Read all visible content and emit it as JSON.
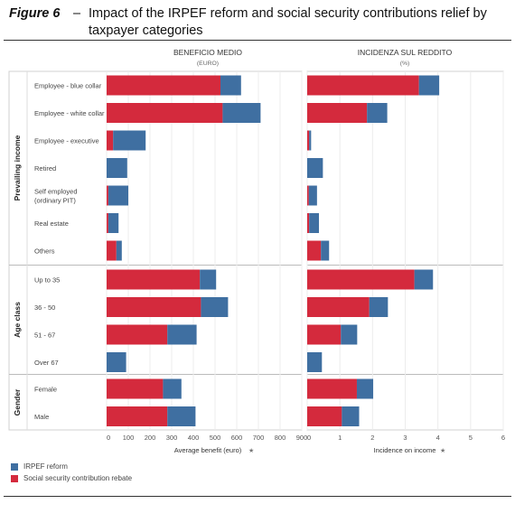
{
  "figure": {
    "label": "Figure 6",
    "dash": "–",
    "title_line1": "Impact of the IRPEF reform and social security contributions relief by",
    "title_line2": "taxpayer categories"
  },
  "colors": {
    "irpef": "#3f6fa1",
    "social": "#d42a3d"
  },
  "legend": {
    "irpef_label": "IRPEF reform",
    "social_label": "Social security contribution rebate"
  },
  "chart_data": [
    {
      "type": "bar",
      "orientation": "horizontal",
      "stacked": true,
      "title": "BENEFICIO MEDIO",
      "subtitle": "(EURO)",
      "xlabel": "Average benefit (euro)",
      "xlim": [
        0,
        900
      ],
      "xticks": [
        0,
        100,
        200,
        300,
        400,
        500,
        600,
        700,
        800,
        900
      ],
      "grid": true,
      "groups": [
        {
          "name": "Prevailing income",
          "categories": [
            "Employee - blue collar",
            "Employee - white collar",
            "Employee - executive",
            "Retired",
            "Self employed (ordinary PIT)",
            "Real estate",
            "Others"
          ]
        },
        {
          "name": "Age class",
          "categories": [
            "Up to 35",
            "36 - 50",
            "51 - 67",
            "Over 67"
          ]
        },
        {
          "name": "Gender",
          "categories": [
            "Female",
            "Male"
          ]
        }
      ],
      "series": [
        {
          "name": "Social security contribution rebate",
          "values": [
            525,
            535,
            30,
            0,
            8,
            8,
            45,
            430,
            435,
            280,
            0,
            260,
            280
          ]
        },
        {
          "name": "IRPEF reform",
          "values": [
            95,
            175,
            150,
            95,
            92,
            47,
            25,
            75,
            125,
            135,
            90,
            85,
            130
          ]
        }
      ]
    },
    {
      "type": "bar",
      "orientation": "horizontal",
      "stacked": true,
      "title": "INCIDENZA SUL REDDITO",
      "subtitle": "(%)",
      "xlabel": "Incidence on income",
      "xlim": [
        0,
        6
      ],
      "xticks": [
        0,
        1,
        2,
        3,
        4,
        5,
        6
      ],
      "grid": true,
      "groups": [
        {
          "name": "Prevailing income",
          "categories": [
            "Employee - blue collar",
            "Employee - white collar",
            "Employee - executive",
            "Retired",
            "Self employed (ordinary PIT)",
            "Real estate",
            "Others"
          ]
        },
        {
          "name": "Age class",
          "categories": [
            "Up to 35",
            "36 - 50",
            "51 - 67",
            "Over 67"
          ]
        },
        {
          "name": "Gender",
          "categories": [
            "Female",
            "Male"
          ]
        }
      ],
      "series": [
        {
          "name": "Social security contribution rebate",
          "values": [
            3.42,
            1.83,
            0.06,
            0,
            0.05,
            0.06,
            0.42,
            3.28,
            1.9,
            1.03,
            0,
            1.52,
            1.06
          ]
        },
        {
          "name": "IRPEF reform",
          "values": [
            0.62,
            0.62,
            0.06,
            0.48,
            0.25,
            0.3,
            0.25,
            0.57,
            0.57,
            0.5,
            0.45,
            0.5,
            0.53
          ]
        }
      ]
    }
  ]
}
